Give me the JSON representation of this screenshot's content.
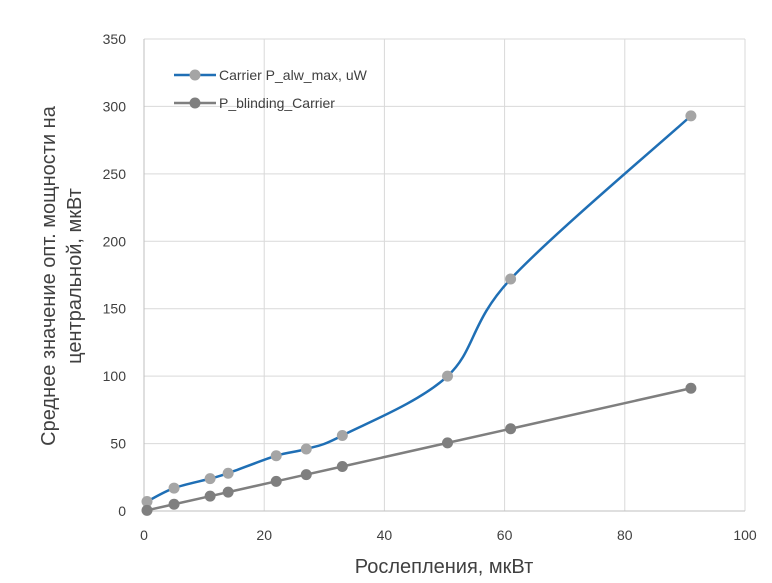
{
  "chart_data": {
    "type": "scatter",
    "title": "",
    "xlabel": "Рослепления, мкВт",
    "ylabel": [
      "Среднее значение опт. мощности на",
      "центральной, мкВт"
    ],
    "xlim": [
      0,
      100
    ],
    "ylim": [
      0,
      350
    ],
    "xticks": [
      0,
      20,
      40,
      60,
      80,
      100
    ],
    "yticks": [
      0,
      50,
      100,
      150,
      200,
      250,
      300,
      350
    ],
    "grid": true,
    "legend_position": "top-left",
    "series": [
      {
        "name": "Carrier P_alw_max, uW",
        "line_color": "#1f6fb5",
        "marker_color": "#a5a5a5",
        "smooth": true,
        "x": [
          0.5,
          5,
          11,
          14,
          22,
          27,
          33,
          50.5,
          61,
          91
        ],
        "y": [
          7,
          17,
          24,
          28,
          41,
          46,
          56,
          100,
          172,
          293
        ]
      },
      {
        "name": "P_blinding_Carrier",
        "line_color": "#7f7f7f",
        "marker_color": "#7f7f7f",
        "smooth": false,
        "x": [
          0.5,
          5,
          11,
          14,
          22,
          27,
          33,
          50.5,
          61,
          91
        ],
        "y": [
          0.5,
          5,
          11,
          14,
          22,
          27,
          33,
          50.5,
          61,
          91
        ]
      }
    ]
  }
}
